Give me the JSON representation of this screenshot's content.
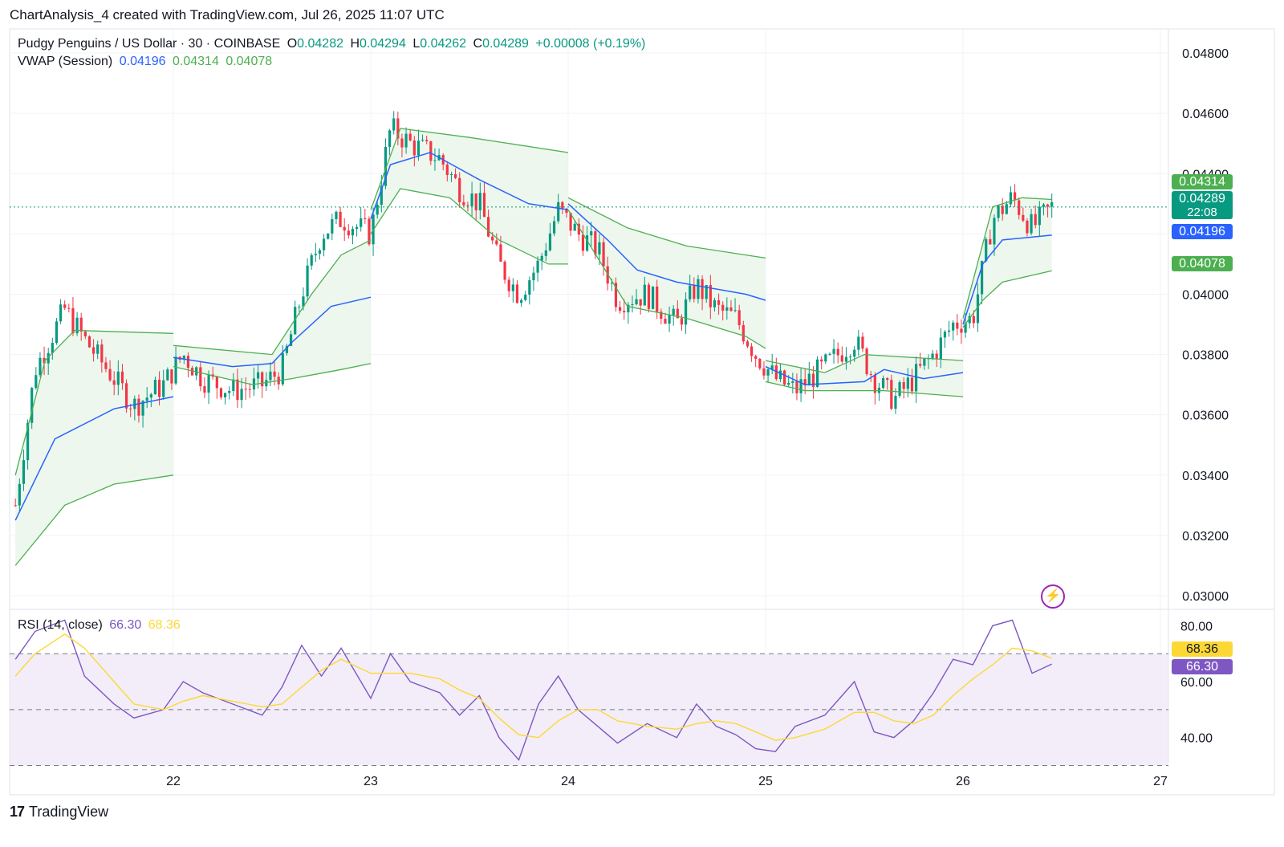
{
  "header": {
    "caption": "ChartAnalysis_4 created with TradingView.com, Jul 26, 2025 11:07 UTC"
  },
  "legend": {
    "symbol": "Pudgy Penguins / US Dollar · 30 · COINBASE",
    "open_label": "O",
    "open": "0.04282",
    "high_label": "H",
    "high": "0.04294",
    "low_label": "L",
    "low": "0.04262",
    "close_label": "C",
    "close": "0.04289",
    "change": "+0.00008 (+0.19%)",
    "vwap_title": "VWAP (Session)",
    "vwap_value": "0.04196",
    "vwap_upper": "0.04314",
    "vwap_lower": "0.04078",
    "rsi_title": "RSI (14, close)",
    "rsi_value": "66.30",
    "rsi_ma": "68.36"
  },
  "price_tags": {
    "upper_band": "0.04314",
    "last_price": "0.04289",
    "countdown": "22:08",
    "vwap": "0.04196",
    "lower_band": "0.04078",
    "rsi_ma": "68.36",
    "rsi": "66.30"
  },
  "colors": {
    "up": "#089981",
    "down": "#f23645",
    "vwap": "#2962ff",
    "band": "#4caf50",
    "band_fill": "#e8f5e9",
    "rsi": "#7e57c2",
    "rsi_ma": "#fdd835",
    "rsi_zone": "#ede7f6",
    "last_price_tag": "#089981",
    "band_tag": "#4caf50",
    "vwap_tag": "#2962ff",
    "rsi_tag": "#7e57c2",
    "rsi_ma_tag": "#fdd835"
  },
  "footer": {
    "brand": "TradingView",
    "brand_mark": "17"
  },
  "chart_data": [
    {
      "type": "candlestick",
      "title": "Pudgy Penguins / US Dollar · 30 · COINBASE",
      "x_axis": {
        "tick_labels": [
          "22",
          "23",
          "24",
          "25",
          "26",
          "27"
        ],
        "range_days": [
          21.2,
          27.0
        ]
      },
      "y_axis": {
        "side": "right",
        "tick_labels": [
          "0.04800",
          "0.04600",
          "0.04400",
          "0.04200",
          "0.04000",
          "0.03800",
          "0.03600",
          "0.03400",
          "0.03200",
          "0.03000"
        ],
        "ylim": [
          0.0296,
          0.0488
        ]
      },
      "grid": true,
      "last_price": 0.04289,
      "price_path": [
        [
          21.2,
          0.033
        ],
        [
          21.3,
          0.0375
        ],
        [
          21.45,
          0.0395
        ],
        [
          21.55,
          0.0385
        ],
        [
          21.7,
          0.0372
        ],
        [
          21.8,
          0.0363
        ],
        [
          21.95,
          0.037
        ],
        [
          22.05,
          0.038
        ],
        [
          22.15,
          0.0372
        ],
        [
          22.3,
          0.0368
        ],
        [
          22.45,
          0.037
        ],
        [
          22.55,
          0.0375
        ],
        [
          22.65,
          0.04
        ],
        [
          22.75,
          0.042
        ],
        [
          22.85,
          0.0425
        ],
        [
          23.0,
          0.042
        ],
        [
          23.1,
          0.0455
        ],
        [
          23.2,
          0.045
        ],
        [
          23.35,
          0.0445
        ],
        [
          23.45,
          0.0435
        ],
        [
          23.55,
          0.043
        ],
        [
          23.65,
          0.041
        ],
        [
          23.75,
          0.04
        ],
        [
          23.85,
          0.041
        ],
        [
          23.95,
          0.0428
        ],
        [
          24.05,
          0.042
        ],
        [
          24.15,
          0.0415
        ],
        [
          24.25,
          0.0398
        ],
        [
          24.4,
          0.04
        ],
        [
          24.55,
          0.039
        ],
        [
          24.65,
          0.0403
        ],
        [
          24.75,
          0.0395
        ],
        [
          24.85,
          0.0392
        ],
        [
          24.95,
          0.038
        ],
        [
          25.05,
          0.0372
        ],
        [
          25.15,
          0.0368
        ],
        [
          25.3,
          0.0376
        ],
        [
          25.45,
          0.0385
        ],
        [
          25.55,
          0.0372
        ],
        [
          25.65,
          0.0365
        ],
        [
          25.75,
          0.0372
        ],
        [
          25.85,
          0.038
        ],
        [
          25.95,
          0.039
        ],
        [
          26.05,
          0.0392
        ],
        [
          26.15,
          0.0425
        ],
        [
          26.25,
          0.0432
        ],
        [
          26.35,
          0.0422
        ],
        [
          26.45,
          0.04289
        ]
      ],
      "vwap_segments": [
        {
          "session": "21",
          "vwap": [
            [
              21.2,
              0.0325
            ],
            [
              21.4,
              0.0352
            ],
            [
              21.7,
              0.0362
            ],
            [
              22.0,
              0.0366
            ]
          ],
          "upper": [
            [
              21.2,
              0.034
            ],
            [
              21.35,
              0.0378
            ],
            [
              21.5,
              0.0388
            ],
            [
              22.0,
              0.0387
            ]
          ],
          "lower": [
            [
              21.2,
              0.031
            ],
            [
              21.45,
              0.033
            ],
            [
              21.7,
              0.0337
            ],
            [
              22.0,
              0.034
            ]
          ]
        },
        {
          "session": "22",
          "vwap": [
            [
              22.0,
              0.0379
            ],
            [
              22.3,
              0.0376
            ],
            [
              22.5,
              0.0377
            ],
            [
              22.6,
              0.0384
            ],
            [
              22.8,
              0.0396
            ],
            [
              23.0,
              0.0399
            ]
          ],
          "upper": [
            [
              22.0,
              0.0383
            ],
            [
              22.5,
              0.038
            ],
            [
              22.7,
              0.04
            ],
            [
              22.85,
              0.0413
            ],
            [
              23.0,
              0.0418
            ]
          ],
          "lower": [
            [
              22.0,
              0.0376
            ],
            [
              22.4,
              0.037
            ],
            [
              22.6,
              0.0372
            ],
            [
              22.85,
              0.0375
            ],
            [
              23.0,
              0.0377
            ]
          ]
        },
        {
          "session": "23",
          "vwap": [
            [
              23.0,
              0.0425
            ],
            [
              23.1,
              0.0443
            ],
            [
              23.3,
              0.0447
            ],
            [
              23.55,
              0.0438
            ],
            [
              23.8,
              0.043
            ],
            [
              24.0,
              0.0428
            ]
          ],
          "upper": [
            [
              23.0,
              0.0428
            ],
            [
              23.15,
              0.0455
            ],
            [
              23.5,
              0.0452
            ],
            [
              24.0,
              0.0447
            ]
          ],
          "lower": [
            [
              23.0,
              0.042
            ],
            [
              23.15,
              0.0435
            ],
            [
              23.4,
              0.0432
            ],
            [
              23.65,
              0.0418
            ],
            [
              23.9,
              0.041
            ],
            [
              24.0,
              0.041
            ]
          ]
        },
        {
          "session": "24",
          "vwap": [
            [
              24.0,
              0.043
            ],
            [
              24.2,
              0.0418
            ],
            [
              24.35,
              0.0408
            ],
            [
              24.55,
              0.0404
            ],
            [
              24.9,
              0.04
            ],
            [
              25.0,
              0.0398
            ]
          ],
          "upper": [
            [
              24.0,
              0.0432
            ],
            [
              24.3,
              0.0422
            ],
            [
              24.6,
              0.0416
            ],
            [
              25.0,
              0.0412
            ]
          ],
          "lower": [
            [
              24.0,
              0.0428
            ],
            [
              24.3,
              0.0396
            ],
            [
              24.6,
              0.0392
            ],
            [
              24.9,
              0.0386
            ],
            [
              25.0,
              0.0382
            ]
          ]
        },
        {
          "session": "25",
          "vwap": [
            [
              25.0,
              0.0376
            ],
            [
              25.2,
              0.037
            ],
            [
              25.5,
              0.0371
            ],
            [
              25.6,
              0.0375
            ],
            [
              25.8,
              0.0372
            ],
            [
              26.0,
              0.0374
            ]
          ],
          "upper": [
            [
              25.0,
              0.0378
            ],
            [
              25.3,
              0.0374
            ],
            [
              25.5,
              0.038
            ],
            [
              26.0,
              0.0378
            ]
          ],
          "lower": [
            [
              25.0,
              0.0371
            ],
            [
              25.2,
              0.0368
            ],
            [
              25.6,
              0.0368
            ],
            [
              26.0,
              0.0366
            ]
          ]
        },
        {
          "session": "26",
          "vwap": [
            [
              26.0,
              0.039
            ],
            [
              26.1,
              0.041
            ],
            [
              26.2,
              0.0418
            ],
            [
              26.45,
              0.04196
            ]
          ],
          "upper": [
            [
              26.0,
              0.0392
            ],
            [
              26.15,
              0.0429
            ],
            [
              26.3,
              0.0432
            ],
            [
              26.45,
              0.04314
            ]
          ],
          "lower": [
            [
              26.0,
              0.0389
            ],
            [
              26.1,
              0.0398
            ],
            [
              26.2,
              0.0404
            ],
            [
              26.45,
              0.04078
            ]
          ]
        }
      ]
    },
    {
      "type": "line",
      "title": "RSI (14, close)",
      "y_axis": {
        "side": "right",
        "tick_labels": [
          "80.00",
          "60.00",
          "40.00"
        ],
        "ylim": [
          31,
          85
        ],
        "bands": [
          30,
          50,
          70
        ]
      },
      "series": [
        {
          "name": "RSI",
          "last": 66.3,
          "values": [
            [
              21.2,
              68
            ],
            [
              21.3,
              78
            ],
            [
              21.45,
              82
            ],
            [
              21.55,
              62
            ],
            [
              21.7,
              52
            ],
            [
              21.8,
              47
            ],
            [
              21.95,
              50
            ],
            [
              22.05,
              60
            ],
            [
              22.15,
              56
            ],
            [
              22.3,
              52
            ],
            [
              22.45,
              48
            ],
            [
              22.55,
              58
            ],
            [
              22.65,
              73
            ],
            [
              22.75,
              62
            ],
            [
              22.85,
              72
            ],
            [
              23.0,
              54
            ],
            [
              23.1,
              70
            ],
            [
              23.2,
              60
            ],
            [
              23.35,
              56
            ],
            [
              23.45,
              48
            ],
            [
              23.55,
              55
            ],
            [
              23.65,
              40
            ],
            [
              23.75,
              32
            ],
            [
              23.85,
              52
            ],
            [
              23.95,
              62
            ],
            [
              24.05,
              50
            ],
            [
              24.15,
              44
            ],
            [
              24.25,
              38
            ],
            [
              24.4,
              45
            ],
            [
              24.55,
              40
            ],
            [
              24.65,
              52
            ],
            [
              24.75,
              44
            ],
            [
              24.85,
              41
            ],
            [
              24.95,
              36
            ],
            [
              25.05,
              35
            ],
            [
              25.15,
              44
            ],
            [
              25.3,
              48
            ],
            [
              25.45,
              60
            ],
            [
              25.55,
              42
            ],
            [
              25.65,
              40
            ],
            [
              25.75,
              46
            ],
            [
              25.85,
              56
            ],
            [
              25.95,
              68
            ],
            [
              26.05,
              66
            ],
            [
              26.15,
              80
            ],
            [
              26.25,
              82
            ],
            [
              26.35,
              63
            ],
            [
              26.45,
              66.3
            ]
          ]
        },
        {
          "name": "RSI-based MA",
          "last": 68.36,
          "values": [
            [
              21.2,
              62
            ],
            [
              21.3,
              70
            ],
            [
              21.45,
              77
            ],
            [
              21.55,
              72
            ],
            [
              21.7,
              60
            ],
            [
              21.8,
              52
            ],
            [
              21.95,
              50
            ],
            [
              22.05,
              53
            ],
            [
              22.15,
              55
            ],
            [
              22.3,
              53
            ],
            [
              22.45,
              51
            ],
            [
              22.55,
              52
            ],
            [
              22.65,
              58
            ],
            [
              22.75,
              64
            ],
            [
              22.85,
              68
            ],
            [
              23.0,
              63
            ],
            [
              23.1,
              63
            ],
            [
              23.2,
              63
            ],
            [
              23.35,
              61
            ],
            [
              23.45,
              57
            ],
            [
              23.55,
              54
            ],
            [
              23.65,
              47
            ],
            [
              23.75,
              41
            ],
            [
              23.85,
              40
            ],
            [
              23.95,
              46
            ],
            [
              24.05,
              50
            ],
            [
              24.15,
              50
            ],
            [
              24.25,
              46
            ],
            [
              24.4,
              44
            ],
            [
              24.55,
              43
            ],
            [
              24.65,
              45
            ],
            [
              24.75,
              46
            ],
            [
              24.85,
              45
            ],
            [
              24.95,
              42
            ],
            [
              25.05,
              39
            ],
            [
              25.15,
              40
            ],
            [
              25.3,
              43
            ],
            [
              25.45,
              49
            ],
            [
              25.55,
              49
            ],
            [
              25.65,
              46
            ],
            [
              25.75,
              45
            ],
            [
              25.85,
              48
            ],
            [
              25.95,
              55
            ],
            [
              26.05,
              61
            ],
            [
              26.15,
              66
            ],
            [
              26.25,
              72
            ],
            [
              26.35,
              71
            ],
            [
              26.45,
              68.36
            ]
          ]
        }
      ]
    }
  ]
}
